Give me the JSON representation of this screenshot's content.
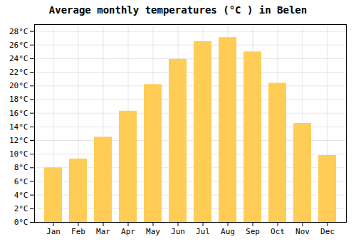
{
  "chart_data": {
    "type": "bar",
    "title": "Average monthly temperatures (°C ) in Belen",
    "categories": [
      "Jan",
      "Feb",
      "Mar",
      "Apr",
      "May",
      "Jun",
      "Jul",
      "Aug",
      "Sep",
      "Oct",
      "Nov",
      "Dec"
    ],
    "values": [
      8.0,
      9.3,
      12.5,
      16.3,
      20.2,
      23.9,
      26.5,
      27.1,
      25.0,
      20.4,
      14.5,
      9.8
    ],
    "color": "#FFCC55",
    "ylim": [
      0,
      29
    ],
    "yticks": [
      {
        "value": 0,
        "label": "0°C"
      },
      {
        "value": 2,
        "label": "2°C"
      },
      {
        "value": 4,
        "label": "4°C"
      },
      {
        "value": 6,
        "label": "6°C"
      },
      {
        "value": 8,
        "label": "8°C"
      },
      {
        "value": 10,
        "label": "10°C"
      },
      {
        "value": 12,
        "label": "12°C"
      },
      {
        "value": 14,
        "label": "14°C"
      },
      {
        "value": 16,
        "label": "16°C"
      },
      {
        "value": 18,
        "label": "18°C"
      },
      {
        "value": 20,
        "label": "20°C"
      },
      {
        "value": 22,
        "label": "22°C"
      },
      {
        "value": 24,
        "label": "24°C"
      },
      {
        "value": 26,
        "label": "26°C"
      },
      {
        "value": 28,
        "label": "28°C"
      }
    ],
    "grid": true
  }
}
